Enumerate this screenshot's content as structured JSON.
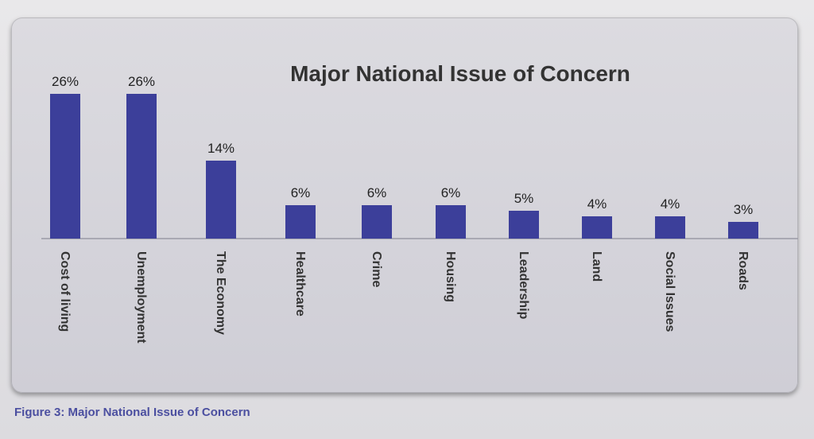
{
  "chart_data": {
    "type": "bar",
    "title": "Major National Issue of Concern",
    "categories": [
      "Cost of living",
      "Unemployment",
      "The Economy",
      "Healthcare",
      "Crime",
      "Housing",
      "Leadership",
      "Land",
      "Social Issues",
      "Roads"
    ],
    "values": [
      26,
      26,
      14,
      6,
      6,
      6,
      5,
      4,
      4,
      3
    ],
    "value_labels": [
      "26%",
      "26%",
      "14%",
      "6%",
      "6%",
      "6%",
      "5%",
      "4%",
      "4%",
      "3%"
    ],
    "ylim": [
      0,
      26
    ],
    "bar_color": "#3c3f9a",
    "grid": false,
    "legend": "none"
  },
  "caption": "Figure 3: Major National Issue of Concern"
}
